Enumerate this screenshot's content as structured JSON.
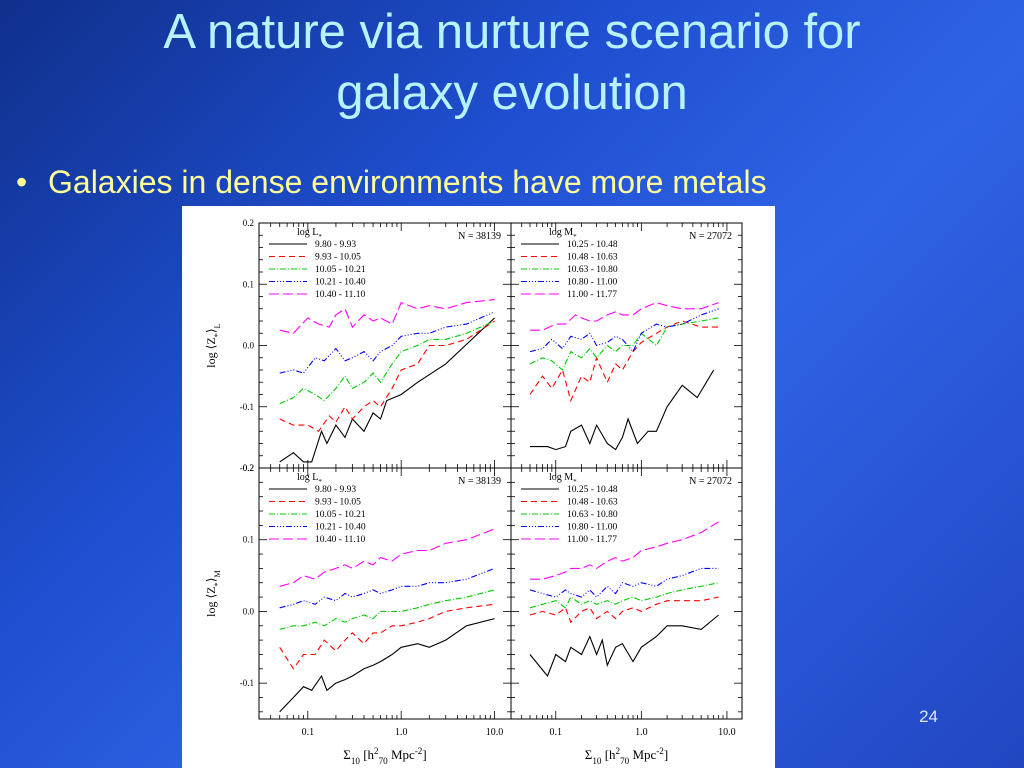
{
  "slide": {
    "title_lines": [
      "A nature via nurture scenario for",
      "galaxy evolution"
    ],
    "bullet": "Galaxies in dense environments have more metals",
    "page_number": "24"
  },
  "chart_data": [
    {
      "type": "line",
      "panel": "top-left",
      "ylabel": "log ⟨Z*⟩L",
      "ylim": [
        -0.2,
        0.2
      ],
      "xlim": [
        0.03,
        15
      ],
      "xscale": "log",
      "yticks": [
        "0.2",
        "0.1",
        "0.0",
        "-0.1",
        "-0.2"
      ],
      "legend_title": "log L*",
      "annotation": "N = 38139",
      "series": [
        {
          "name": "9.80 - 9.93",
          "color": "#000000",
          "dash": "",
          "x": [
            0.05,
            0.07,
            0.09,
            0.11,
            0.14,
            0.16,
            0.2,
            0.25,
            0.3,
            0.4,
            0.5,
            0.6,
            0.7,
            1.0,
            1.5,
            3.0,
            10.0
          ],
          "y": [
            -0.19,
            -0.175,
            -0.19,
            -0.19,
            -0.14,
            -0.16,
            -0.13,
            -0.15,
            -0.12,
            -0.14,
            -0.11,
            -0.12,
            -0.09,
            -0.08,
            -0.06,
            -0.03,
            0.045
          ]
        },
        {
          "name": "9.93 - 10.05",
          "color": "#ff0000",
          "dash": "6,4",
          "x": [
            0.05,
            0.07,
            0.1,
            0.13,
            0.17,
            0.2,
            0.25,
            0.3,
            0.4,
            0.5,
            0.6,
            0.8,
            1.0,
            1.5,
            2.0,
            3.0,
            5.0,
            10.0
          ],
          "y": [
            -0.12,
            -0.13,
            -0.13,
            -0.14,
            -0.115,
            -0.125,
            -0.1,
            -0.12,
            -0.1,
            -0.09,
            -0.1,
            -0.07,
            -0.04,
            -0.03,
            0.0,
            0.0,
            0.01,
            0.04
          ]
        },
        {
          "name": "10.05 - 10.21",
          "color": "#00cc00",
          "dash": "6,2,1,2",
          "x": [
            0.05,
            0.07,
            0.09,
            0.12,
            0.15,
            0.2,
            0.25,
            0.3,
            0.4,
            0.5,
            0.6,
            0.8,
            1.0,
            1.5,
            2.0,
            3.0,
            5.0,
            10.0
          ],
          "y": [
            -0.095,
            -0.085,
            -0.07,
            -0.08,
            -0.09,
            -0.07,
            -0.05,
            -0.07,
            -0.06,
            -0.045,
            -0.06,
            -0.03,
            -0.01,
            0.0,
            0.01,
            0.01,
            0.02,
            0.04
          ]
        },
        {
          "name": "10.21 - 10.40",
          "color": "#0000ff",
          "dash": "6,2,1,2,1,2,1,2",
          "x": [
            0.05,
            0.07,
            0.09,
            0.12,
            0.15,
            0.2,
            0.25,
            0.3,
            0.4,
            0.5,
            0.6,
            0.8,
            1.0,
            1.5,
            2.0,
            3.0,
            5.0,
            10.0
          ],
          "y": [
            -0.045,
            -0.04,
            -0.045,
            -0.02,
            -0.025,
            -0.005,
            -0.025,
            -0.02,
            -0.01,
            -0.025,
            -0.01,
            0.0,
            0.015,
            0.02,
            0.02,
            0.03,
            0.035,
            0.055
          ]
        },
        {
          "name": "10.40 - 11.10",
          "color": "#ff00ff",
          "dash": "10,4",
          "x": [
            0.05,
            0.07,
            0.1,
            0.13,
            0.17,
            0.2,
            0.25,
            0.3,
            0.4,
            0.5,
            0.6,
            0.8,
            1.0,
            1.5,
            2.0,
            3.0,
            5.0,
            10.0
          ],
          "y": [
            0.025,
            0.02,
            0.045,
            0.035,
            0.03,
            0.05,
            0.06,
            0.03,
            0.05,
            0.04,
            0.045,
            0.035,
            0.07,
            0.06,
            0.065,
            0.06,
            0.07,
            0.075
          ]
        }
      ]
    },
    {
      "type": "line",
      "panel": "top-right",
      "ylim": [
        -0.2,
        0.2
      ],
      "xlim": [
        0.03,
        15
      ],
      "xscale": "log",
      "legend_title": "log M*",
      "annotation": "N = 27072",
      "series": [
        {
          "name": "10.25 - 10.48",
          "color": "#000000",
          "dash": "",
          "x": [
            0.05,
            0.08,
            0.1,
            0.13,
            0.15,
            0.2,
            0.25,
            0.3,
            0.4,
            0.5,
            0.6,
            0.7,
            0.9,
            1.2,
            1.5,
            2.0,
            3.0,
            4.5,
            7.0
          ],
          "y": [
            -0.165,
            -0.165,
            -0.17,
            -0.165,
            -0.14,
            -0.13,
            -0.16,
            -0.13,
            -0.16,
            -0.17,
            -0.15,
            -0.12,
            -0.16,
            -0.14,
            -0.14,
            -0.1,
            -0.065,
            -0.085,
            -0.04
          ]
        },
        {
          "name": "10.48 - 10.63",
          "color": "#ff0000",
          "dash": "6,4",
          "x": [
            0.05,
            0.07,
            0.09,
            0.12,
            0.15,
            0.2,
            0.25,
            0.3,
            0.4,
            0.5,
            0.6,
            0.8,
            1.0,
            1.5,
            2.0,
            3.0,
            5.0,
            8.0
          ],
          "y": [
            -0.08,
            -0.05,
            -0.07,
            -0.04,
            -0.09,
            -0.05,
            -0.06,
            -0.02,
            -0.06,
            -0.03,
            -0.04,
            -0.01,
            0.005,
            0.02,
            0.03,
            0.04,
            0.03,
            0.03
          ]
        },
        {
          "name": "10.63 - 10.80",
          "color": "#00cc00",
          "dash": "6,2,1,2",
          "x": [
            0.05,
            0.07,
            0.09,
            0.12,
            0.15,
            0.2,
            0.25,
            0.3,
            0.4,
            0.5,
            0.6,
            0.8,
            1.0,
            1.5,
            2.0,
            3.0,
            5.0,
            8.0
          ],
          "y": [
            -0.03,
            -0.02,
            -0.025,
            -0.04,
            -0.01,
            -0.02,
            -0.005,
            -0.02,
            0.0,
            -0.01,
            0.0,
            0.0,
            0.02,
            0.0,
            0.03,
            0.035,
            0.04,
            0.045
          ]
        },
        {
          "name": "10.80 - 11.00",
          "color": "#0000ff",
          "dash": "6,2,1,2,1,2,1,2",
          "x": [
            0.05,
            0.07,
            0.09,
            0.12,
            0.15,
            0.2,
            0.25,
            0.3,
            0.4,
            0.5,
            0.6,
            0.8,
            1.0,
            1.5,
            2.0,
            3.0,
            5.0,
            8.0
          ],
          "y": [
            -0.01,
            -0.005,
            0.01,
            -0.005,
            0.015,
            0.01,
            0.02,
            0.0,
            0.005,
            0.015,
            0.01,
            -0.01,
            0.02,
            0.035,
            0.03,
            0.035,
            0.05,
            0.06
          ]
        },
        {
          "name": "11.00 - 11.77",
          "color": "#ff00ff",
          "dash": "10,4",
          "x": [
            0.05,
            0.07,
            0.1,
            0.13,
            0.17,
            0.2,
            0.25,
            0.3,
            0.4,
            0.5,
            0.6,
            0.8,
            1.0,
            1.5,
            2.0,
            3.0,
            5.0,
            8.0
          ],
          "y": [
            0.025,
            0.025,
            0.035,
            0.035,
            0.05,
            0.045,
            0.04,
            0.04,
            0.05,
            0.055,
            0.05,
            0.05,
            0.06,
            0.07,
            0.065,
            0.06,
            0.06,
            0.07
          ]
        }
      ]
    },
    {
      "type": "line",
      "panel": "bottom-left",
      "ylabel": "log ⟨Z*⟩M",
      "xlabel": "Σ10 [h²70 Mpc⁻²]",
      "ylim": [
        -0.15,
        0.2
      ],
      "xlim": [
        0.03,
        15
      ],
      "xscale": "log",
      "yticks": [
        "0.2",
        "0.1",
        "0.0",
        "-0.1"
      ],
      "xticks": [
        "0.1",
        "1.0",
        "10.0"
      ],
      "legend_title": "log L*",
      "annotation": "N = 38139",
      "series": [
        {
          "name": "9.80 - 9.93",
          "color": "#000000",
          "dash": "",
          "x": [
            0.05,
            0.07,
            0.09,
            0.11,
            0.14,
            0.16,
            0.2,
            0.25,
            0.3,
            0.4,
            0.5,
            0.6,
            0.8,
            1.0,
            1.5,
            2.0,
            3.0,
            5.0,
            10.0
          ],
          "y": [
            -0.14,
            -0.12,
            -0.105,
            -0.11,
            -0.09,
            -0.11,
            -0.1,
            -0.095,
            -0.09,
            -0.08,
            -0.075,
            -0.07,
            -0.06,
            -0.05,
            -0.045,
            -0.05,
            -0.04,
            -0.02,
            -0.01
          ]
        },
        {
          "name": "9.93 - 10.05",
          "color": "#ff0000",
          "dash": "6,4",
          "x": [
            0.05,
            0.07,
            0.09,
            0.12,
            0.15,
            0.2,
            0.25,
            0.3,
            0.4,
            0.5,
            0.6,
            0.8,
            1.0,
            1.5,
            2.0,
            3.0,
            5.0,
            10.0
          ],
          "y": [
            -0.05,
            -0.08,
            -0.06,
            -0.06,
            -0.04,
            -0.055,
            -0.04,
            -0.03,
            -0.045,
            -0.03,
            -0.03,
            -0.02,
            -0.02,
            -0.015,
            -0.01,
            0.0,
            0.005,
            0.01
          ]
        },
        {
          "name": "10.05 - 10.21",
          "color": "#00cc00",
          "dash": "6,2,1,2",
          "x": [
            0.05,
            0.07,
            0.09,
            0.12,
            0.15,
            0.2,
            0.25,
            0.3,
            0.4,
            0.5,
            0.6,
            0.8,
            1.0,
            1.5,
            2.0,
            3.0,
            5.0,
            10.0
          ],
          "y": [
            -0.025,
            -0.02,
            -0.02,
            -0.015,
            -0.02,
            -0.01,
            -0.015,
            -0.01,
            -0.005,
            -0.01,
            0.0,
            0.0,
            0.0,
            0.005,
            0.01,
            0.015,
            0.02,
            0.03
          ]
        },
        {
          "name": "10.21 - 10.40",
          "color": "#0000ff",
          "dash": "6,2,1,2,1,2,1,2",
          "x": [
            0.05,
            0.07,
            0.09,
            0.12,
            0.15,
            0.2,
            0.25,
            0.3,
            0.4,
            0.5,
            0.6,
            0.8,
            1.0,
            1.5,
            2.0,
            3.0,
            5.0,
            10.0
          ],
          "y": [
            0.005,
            0.01,
            0.015,
            0.01,
            0.02,
            0.015,
            0.025,
            0.02,
            0.025,
            0.03,
            0.025,
            0.03,
            0.035,
            0.035,
            0.04,
            0.04,
            0.045,
            0.06
          ]
        },
        {
          "name": "10.40 - 11.10",
          "color": "#ff00ff",
          "dash": "10,4",
          "x": [
            0.05,
            0.07,
            0.09,
            0.12,
            0.15,
            0.2,
            0.25,
            0.3,
            0.4,
            0.5,
            0.6,
            0.8,
            1.0,
            1.5,
            2.0,
            3.0,
            5.0,
            10.0
          ],
          "y": [
            0.035,
            0.04,
            0.05,
            0.045,
            0.055,
            0.06,
            0.065,
            0.06,
            0.07,
            0.065,
            0.075,
            0.07,
            0.08,
            0.085,
            0.085,
            0.095,
            0.1,
            0.115
          ]
        }
      ]
    },
    {
      "type": "line",
      "panel": "bottom-right",
      "xlabel": "Σ10 [h²70 Mpc⁻²]",
      "ylim": [
        -0.15,
        0.2
      ],
      "xlim": [
        0.03,
        15
      ],
      "xscale": "log",
      "xticks": [
        "0.1",
        "1.0",
        "10.0"
      ],
      "legend_title": "log M*",
      "annotation": "N = 27072",
      "series": [
        {
          "name": "10.25 - 10.48",
          "color": "#000000",
          "dash": "",
          "x": [
            0.05,
            0.08,
            0.1,
            0.13,
            0.15,
            0.2,
            0.25,
            0.3,
            0.35,
            0.4,
            0.5,
            0.6,
            0.8,
            1.0,
            1.5,
            2.0,
            3.0,
            5.0,
            8.0
          ],
          "y": [
            -0.06,
            -0.09,
            -0.06,
            -0.07,
            -0.05,
            -0.06,
            -0.035,
            -0.06,
            -0.04,
            -0.075,
            -0.05,
            -0.045,
            -0.07,
            -0.05,
            -0.035,
            -0.02,
            -0.02,
            -0.025,
            -0.005
          ]
        },
        {
          "name": "10.48 - 10.63",
          "color": "#ff0000",
          "dash": "6,4",
          "x": [
            0.05,
            0.07,
            0.1,
            0.13,
            0.15,
            0.2,
            0.25,
            0.3,
            0.4,
            0.5,
            0.6,
            0.8,
            1.0,
            1.5,
            2.0,
            3.0,
            5.0,
            8.0
          ],
          "y": [
            -0.005,
            0.0,
            -0.005,
            0.005,
            -0.015,
            0.0,
            0.005,
            -0.01,
            0.0,
            -0.01,
            0.0,
            0.005,
            0.0,
            0.01,
            0.015,
            0.015,
            0.015,
            0.02
          ]
        },
        {
          "name": "10.63 - 10.80",
          "color": "#00cc00",
          "dash": "6,2,1,2",
          "x": [
            0.05,
            0.07,
            0.1,
            0.13,
            0.15,
            0.2,
            0.25,
            0.3,
            0.4,
            0.5,
            0.6,
            0.8,
            1.0,
            1.5,
            2.0,
            3.0,
            5.0,
            8.0
          ],
          "y": [
            0.005,
            0.01,
            0.015,
            0.005,
            0.02,
            0.01,
            0.015,
            0.01,
            0.015,
            0.01,
            0.015,
            0.02,
            0.015,
            0.02,
            0.025,
            0.03,
            0.035,
            0.04
          ]
        },
        {
          "name": "10.80 - 11.00",
          "color": "#0000ff",
          "dash": "6,2,1,2,1,2,1,2",
          "x": [
            0.05,
            0.07,
            0.1,
            0.13,
            0.15,
            0.2,
            0.25,
            0.3,
            0.4,
            0.5,
            0.6,
            0.8,
            1.0,
            1.5,
            2.0,
            3.0,
            5.0,
            8.0
          ],
          "y": [
            0.03,
            0.025,
            0.02,
            0.03,
            0.025,
            0.02,
            0.03,
            0.02,
            0.035,
            0.025,
            0.04,
            0.035,
            0.04,
            0.035,
            0.045,
            0.05,
            0.06,
            0.06
          ]
        },
        {
          "name": "11.00 - 11.77",
          "color": "#ff00ff",
          "dash": "10,4",
          "x": [
            0.05,
            0.07,
            0.1,
            0.13,
            0.15,
            0.2,
            0.25,
            0.3,
            0.4,
            0.5,
            0.6,
            0.8,
            1.0,
            1.5,
            2.0,
            3.0,
            5.0,
            8.0
          ],
          "y": [
            0.045,
            0.045,
            0.05,
            0.055,
            0.06,
            0.06,
            0.065,
            0.06,
            0.07,
            0.075,
            0.07,
            0.075,
            0.085,
            0.09,
            0.095,
            0.1,
            0.11,
            0.125
          ]
        }
      ]
    }
  ]
}
